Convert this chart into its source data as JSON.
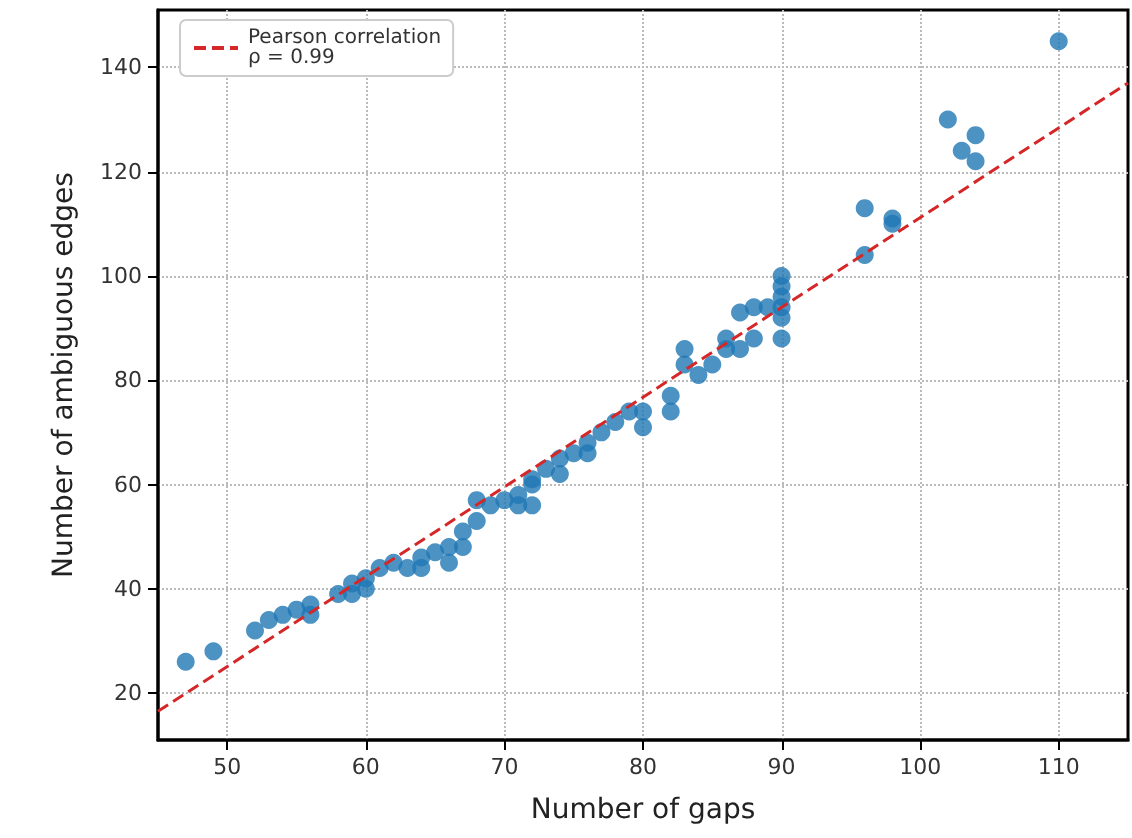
{
  "chart_data": {
    "type": "scatter",
    "xlabel": "Number of gaps",
    "ylabel": "Number of ambiguous edges",
    "xlim": [
      45,
      115
    ],
    "xticks": [
      50,
      60,
      70,
      80,
      90,
      100,
      110
    ],
    "ylim": [
      11,
      151
    ],
    "yticks": [
      20,
      40,
      60,
      80,
      100,
      120,
      140
    ],
    "grid": true,
    "legend": "top left",
    "marker": "circle",
    "series": [
      {
        "color": "#1f77b4",
        "x": [
          47,
          49,
          52,
          53,
          54,
          55,
          56,
          56,
          58,
          59,
          59,
          60,
          60,
          61,
          62,
          63,
          64,
          64,
          65,
          66,
          66,
          67,
          67,
          68,
          68,
          69,
          70,
          71,
          71,
          72,
          72,
          72,
          73,
          74,
          74,
          75,
          76,
          76,
          77,
          78,
          79,
          80,
          80,
          82,
          82,
          83,
          83,
          84,
          85,
          86,
          86,
          87,
          87,
          88,
          88,
          89,
          90,
          90,
          90,
          90,
          90,
          90,
          96,
          96,
          98,
          98,
          102,
          103,
          104,
          104,
          110
        ],
        "values": [
          26,
          28,
          32,
          34,
          35,
          36,
          37,
          35,
          39,
          41,
          39,
          42,
          40,
          44,
          45,
          44,
          46,
          44,
          47,
          48,
          45,
          51,
          48,
          53,
          57,
          56,
          57,
          58,
          56,
          60,
          61,
          56,
          63,
          65,
          62,
          66,
          66,
          68,
          70,
          72,
          74,
          74,
          71,
          74,
          77,
          83,
          86,
          81,
          83,
          86,
          88,
          86,
          93,
          94,
          88,
          94,
          100,
          98,
          96,
          94,
          92,
          88,
          113,
          104,
          111,
          110,
          130,
          124,
          127,
          122,
          145
        ]
      },
      {
        "type": "line",
        "name": "Pearson correlation\nρ = 0.99",
        "color": "#d62728",
        "line_style": "dashed",
        "marker": "none",
        "x": [
          45,
          115
        ],
        "values": [
          16.5,
          137
        ]
      }
    ]
  }
}
